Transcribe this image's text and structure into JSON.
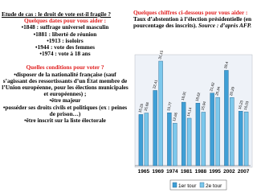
{
  "slide": {
    "title": "Etude de cas : le droit de vote est-il fragile ?",
    "dates_heading": "Quelques dates pour vous aider :",
    "dates": [
      "•1848 : suffrage universel masculin",
      "•1881 : liberté de réunion",
      "•1913 : isoloirs",
      "•1944 : vote des femmes",
      "•1974 : vote à 18 ans"
    ],
    "conditions_heading": "Quelles conditions pour voter ?",
    "conditions": [
      "•disposer de la nationalité française (sauf s’agissant des ressortissants d’un État membre de l’Union européenne, pour les élections municipales et européennes) ;",
      "•être majeur",
      "•posséder ses droits civils et politiques (ex : peines de prison…)",
      "•être inscrit sur la liste électorale"
    ],
    "chart_intro": "Quelques chiffres ci-dessous pour vous aider :",
    "chart_caption": "Taux d’abstention à l’élection présidentielle (en pourcentage des inscrits).",
    "chart_source": "Source : d’après AFP."
  },
  "chart_data": {
    "type": "bar",
    "categories": [
      "1965",
      "1969",
      "1974",
      "1981",
      "1988",
      "1995",
      "2002",
      "2007"
    ],
    "series": [
      {
        "name": "1er tour",
        "color": "#3f9fd6",
        "values": [
          15.25,
          22.41,
          15.77,
          18.91,
          18.62,
          21.62,
          28.4,
          16.23
        ],
        "value_labels": [
          "15,25",
          "22,41",
          "15,77",
          "18,91",
          "18,62",
          "21,62",
          "28,4",
          "16,23"
        ]
      },
      {
        "name": "2e tour",
        "color": "#7cc8ec",
        "values": [
          15.68,
          31.15,
          12.66,
          14.14,
          15.94,
          20.34,
          20.29,
          16.03
        ],
        "value_labels": [
          "15,68",
          "31,15",
          "12,66",
          "14,14",
          "15,94",
          "20,34",
          "20,29",
          "16,03"
        ]
      }
    ]
  }
}
